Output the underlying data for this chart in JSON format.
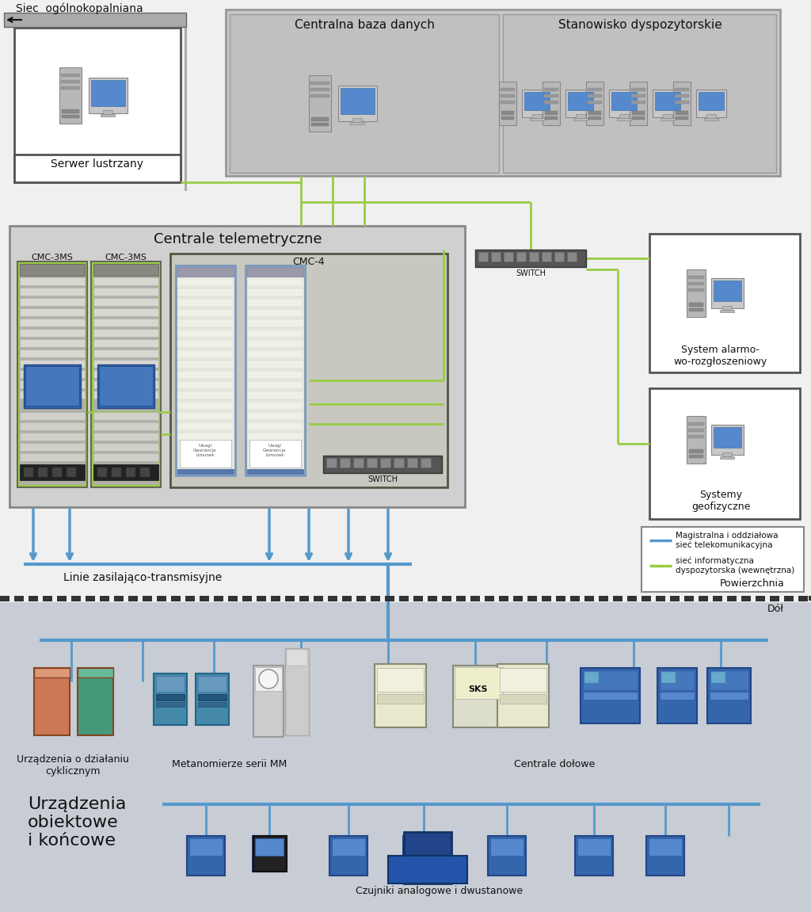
{
  "labels": {
    "siec": "Siec  ogólnokopalniana",
    "serwer": "Serwer lustrzany",
    "central_db": "Centralna baza danych",
    "stanowisko": "Stanowisko dyspozytorskie",
    "centrale_tel": "Centrale telemetryczne",
    "cmc3ms_1": "CMC-3MS",
    "cmc3ms_2": "CMC-3MS",
    "cmc4": "CMC-4",
    "switch1": "SWITCH",
    "switch2": "SWITCH",
    "system_alarm": "System alarmo-\nwo-rozgłoszeniowy",
    "systemy_geo": "Systemy\ngeofizyczne",
    "linie": "Linie zasilająco-transmisyjne",
    "powierzchnia": "Powierzchnia",
    "dol": "Dół",
    "urzadzenia_cykl": "Urządzenia o działaniu\ncyklicznym",
    "metanomierze": "Metanomierze serii MM",
    "centrale_dolowe": "Centrale dołowe",
    "urzadzenia_obj": "Urządzenia\nobiektowe\ni końcowe",
    "czujniki": "Czujniki analogowe i dwustanowe",
    "magistralna": "Magistralna i oddziałowa\nsieć telekomunikacyjna",
    "siec_info": "sieć informatyczna\ndyspozytorska (wewnętrzna)",
    "sks": "SKS"
  },
  "colors": {
    "blue": "#5599cc",
    "green": "#99cc44",
    "bg_surface": "#f0f0f0",
    "bg_underground": "#c8ccd8",
    "box_gray": "#c8c8c8",
    "box_dark": "#555555",
    "white": "#ffffff",
    "rack_dark": "#444444",
    "rack_bg": "#e8e8e0"
  }
}
